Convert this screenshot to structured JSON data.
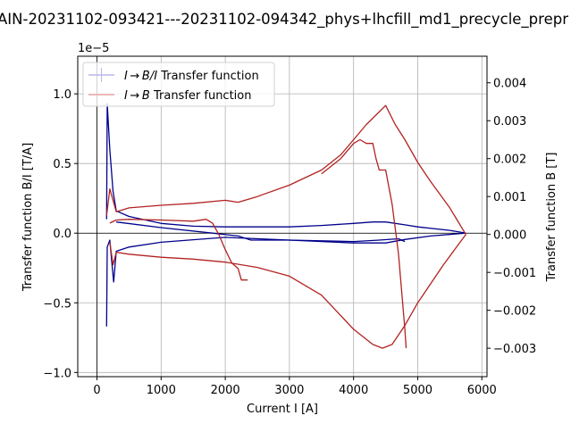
{
  "chart_data": {
    "type": "line",
    "title": "AIN-20231102-093421---20231102-094342_phys+lhcfill_md1_precycle_prepr",
    "xlabel": "Current I [A]",
    "ylabel": "Transfer function B/I [T/A]",
    "ylabel_right": "Transfer function B [T]",
    "y_offset_text": "1e−5",
    "xlim": [
      -300,
      6080
    ],
    "ylim": [
      -1.03,
      1.27
    ],
    "ylim_right": [
      -0.00375,
      0.0047
    ],
    "x_ticks": [
      0,
      1000,
      2000,
      3000,
      4000,
      5000,
      6000
    ],
    "x_tick_labels": [
      "0",
      "1000",
      "2000",
      "3000",
      "4000",
      "5000",
      "6000"
    ],
    "y_ticks": [
      1.0,
      0.5,
      0.0,
      -0.5,
      -1.0
    ],
    "y_tick_labels": [
      "1.0",
      "0.5",
      "0.0",
      "−0.5",
      "−1.0"
    ],
    "y_right_ticks": [
      0.004,
      0.003,
      0.002,
      0.001,
      0.0,
      -0.001,
      -0.002,
      -0.003
    ],
    "y_right_tick_labels": [
      "0.004",
      "0.003",
      "0.002",
      "0.001",
      "0.000",
      "−0.001",
      "−0.002",
      "−0.003"
    ],
    "grid": true,
    "legend_position": "top-left",
    "legend": [
      {
        "label_italic": "I → B/I",
        "label_rest": " Transfer function",
        "color": "#b8b8e8"
      },
      {
        "label_italic": "I → B",
        "label_rest": " Transfer function",
        "color": "#eeb8b8"
      }
    ],
    "series": [
      {
        "name": "B/I upper branch",
        "axis": "left",
        "color": "#00008b",
        "x": [
          150,
          160,
          170,
          200,
          250,
          300,
          500,
          1000,
          1500,
          2000,
          3000,
          3500,
          4000,
          4300,
          4500,
          4800,
          5000,
          5500,
          5750
        ],
        "y": [
          0.1,
          0.93,
          0.85,
          0.6,
          0.3,
          0.16,
          0.12,
          0.07,
          0.05,
          0.045,
          0.045,
          0.055,
          0.07,
          0.08,
          0.08,
          0.06,
          0.045,
          0.02,
          0.0
        ]
      },
      {
        "name": "B/I lower branch",
        "axis": "left",
        "color": "#00008b",
        "x": [
          5750,
          5200,
          4800,
          4500,
          4000,
          3500,
          3000,
          2000,
          1000,
          500,
          300,
          260,
          230,
          200,
          160,
          150
        ],
        "y": [
          0.0,
          -0.02,
          -0.045,
          -0.07,
          -0.07,
          -0.06,
          -0.05,
          -0.03,
          -0.065,
          -0.1,
          -0.13,
          -0.35,
          -0.2,
          -0.05,
          -0.1,
          -0.67
        ]
      },
      {
        "name": "B/I inner branch",
        "axis": "left",
        "color": "#00008b",
        "x": [
          300,
          1000,
          1800,
          2200,
          2400,
          3000,
          4000,
          4400,
          4700,
          4800
        ],
        "y": [
          0.08,
          0.04,
          0.0,
          -0.02,
          -0.05,
          -0.05,
          -0.06,
          -0.05,
          -0.04,
          -0.06
        ]
      },
      {
        "name": "B upper ramp",
        "axis": "right",
        "color": "#b22222",
        "x": [
          150,
          200,
          300,
          500,
          1000,
          1500,
          2000,
          2200,
          2500,
          3000,
          3500,
          3800,
          4000,
          4200,
          4500,
          4650,
          4800,
          5000,
          5200,
          5500,
          5750
        ],
        "y": [
          0.0005,
          0.0012,
          0.0006,
          0.0007,
          0.00077,
          0.00082,
          0.0009,
          0.00085,
          0.001,
          0.0013,
          0.0017,
          0.0021,
          0.0025,
          0.0029,
          0.0034,
          0.0029,
          0.0025,
          0.0019,
          0.0014,
          0.0007,
          0.0
        ]
      },
      {
        "name": "B second peak",
        "axis": "right",
        "color": "#b22222",
        "x": [
          3500,
          3800,
          4000,
          4100,
          4200,
          4300,
          4350,
          4400,
          4500,
          4600,
          4700,
          4800,
          4820
        ],
        "y": [
          0.0016,
          0.002,
          0.0024,
          0.0025,
          0.0024,
          0.0024,
          0.002,
          0.0017,
          0.0017,
          0.0008,
          -0.0005,
          -0.0025,
          -0.003
        ]
      },
      {
        "name": "B lower return",
        "axis": "right",
        "color": "#b22222",
        "x": [
          5750,
          5400,
          5000,
          4800,
          4600,
          4450,
          4300,
          4000,
          3500,
          3000,
          2500,
          2000,
          1500,
          1000,
          500,
          300,
          250,
          200
        ],
        "y": [
          0.0,
          -0.0008,
          -0.0018,
          -0.0024,
          -0.0029,
          -0.003,
          -0.0029,
          -0.0025,
          -0.0016,
          -0.0011,
          -0.00087,
          -0.00073,
          -0.00065,
          -0.0006,
          -0.00052,
          -0.00047,
          -0.0008,
          -0.0002
        ]
      },
      {
        "name": "B descending mid",
        "axis": "right",
        "color": "#b22222",
        "x": [
          200,
          300,
          500,
          1000,
          1500,
          1700,
          1800,
          1900,
          2000,
          2100,
          2200,
          2250,
          2350
        ],
        "y": [
          0.0003,
          0.00038,
          0.0004,
          0.00038,
          0.00035,
          0.0004,
          0.0003,
          0.0,
          -0.0004,
          -0.00075,
          -0.0009,
          -0.0012,
          -0.0012
        ]
      }
    ]
  }
}
